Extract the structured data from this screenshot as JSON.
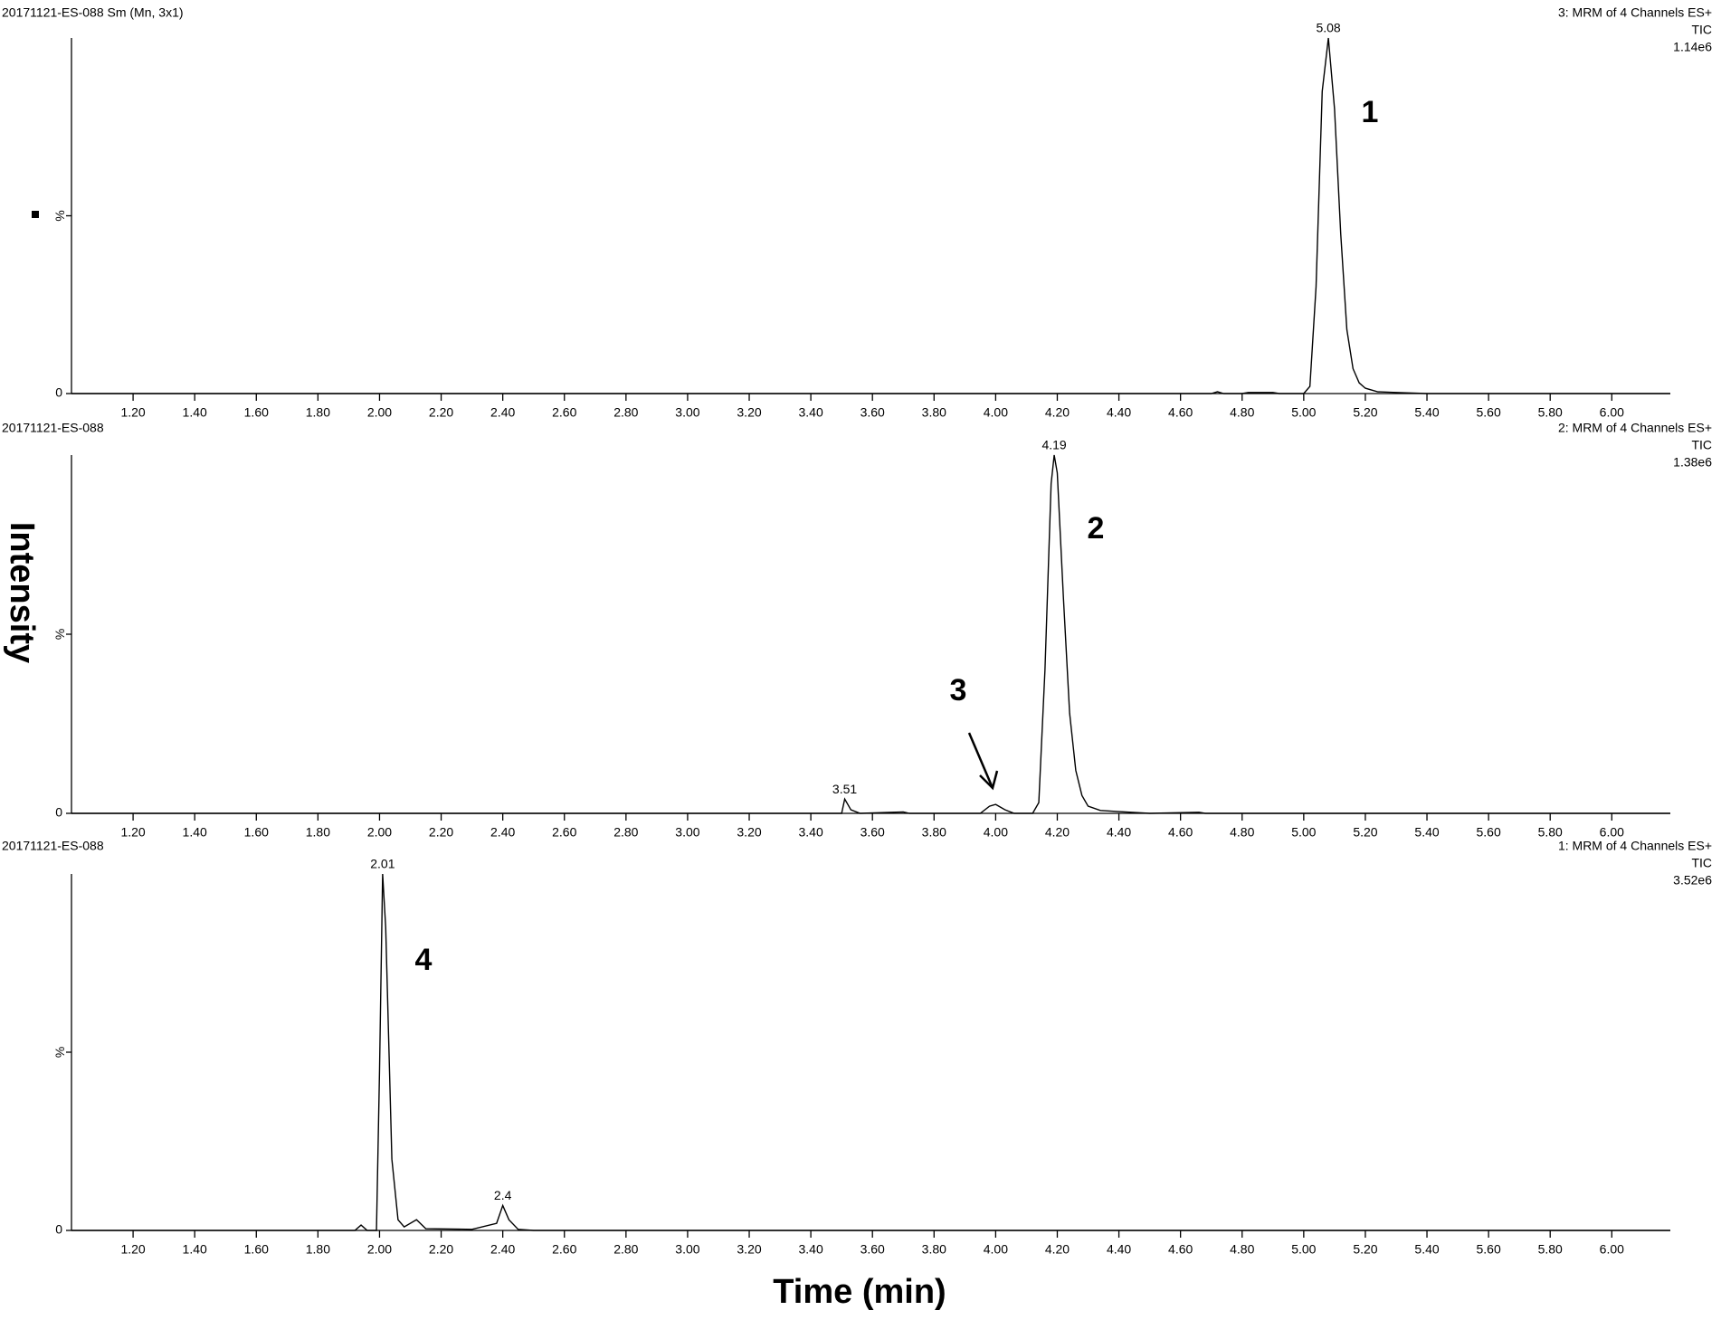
{
  "xlabel": "Time (min)",
  "ylabel": "Intensity",
  "chart_data": [
    {
      "type": "line",
      "title": "20171121-ES-088 Sm (Mn, 3x1)",
      "channel": "3: MRM of 4 Channels ES+",
      "trace": "TIC",
      "scale": "1.14e6",
      "text_color": "#000000",
      "color": "#000000",
      "annotation": "1",
      "x": [
        1.0,
        4.7,
        4.72,
        4.74,
        4.8,
        4.82,
        4.9,
        4.92,
        5.0,
        5.02,
        5.04,
        5.06,
        5.08,
        5.1,
        5.12,
        5.14,
        5.16,
        5.18,
        5.2,
        5.24,
        5.3,
        5.4,
        6.19
      ],
      "values": [
        0,
        0,
        0.5,
        0,
        0,
        0.3,
        0.3,
        0,
        0,
        2,
        30,
        85,
        100,
        80,
        45,
        18,
        7,
        3,
        1.5,
        0.5,
        0.3,
        0,
        0
      ],
      "peaks": [
        5.08
      ],
      "xlim": [
        1.0,
        6.19
      ],
      "ylim": [
        0,
        100
      ],
      "xticks": [
        {
          "value": 1.2,
          "label": "1.20"
        },
        {
          "value": 1.4,
          "label": "1.40"
        },
        {
          "value": 1.6,
          "label": "1.60"
        },
        {
          "value": 1.8,
          "label": "1.80"
        },
        {
          "value": 2.0,
          "label": "2.00"
        },
        {
          "value": 2.2,
          "label": "2.20"
        },
        {
          "value": 2.4,
          "label": "2.40"
        },
        {
          "value": 2.6,
          "label": "2.60"
        },
        {
          "value": 2.8,
          "label": "2.80"
        },
        {
          "value": 3.0,
          "label": "3.00"
        },
        {
          "value": 3.2,
          "label": "3.20"
        },
        {
          "value": 3.4,
          "label": "3.40"
        },
        {
          "value": 3.6,
          "label": "3.60"
        },
        {
          "value": 3.8,
          "label": "3.80"
        },
        {
          "value": 4.0,
          "label": "4.00"
        },
        {
          "value": 4.2,
          "label": "4.20"
        },
        {
          "value": 4.4,
          "label": "4.40"
        },
        {
          "value": 4.6,
          "label": "4.60"
        },
        {
          "value": 4.8,
          "label": "4.80"
        },
        {
          "value": 5.0,
          "label": "5.00"
        },
        {
          "value": 5.2,
          "label": "5.20"
        },
        {
          "value": 5.4,
          "label": "5.40"
        },
        {
          "value": 5.6,
          "label": "5.60"
        },
        {
          "value": 5.8,
          "label": "5.80"
        },
        {
          "value": 6.0,
          "label": "6.00"
        }
      ],
      "yticks": [
        0,
        {
          "value": 50,
          "label": "%"
        }
      ]
    },
    {
      "type": "line",
      "title": "20171121-ES-088",
      "channel": "2: MRM of 4 Channels ES+",
      "trace": "TIC",
      "scale": "1.38e6",
      "text_color": "#1a8c1a",
      "color": "#000000",
      "annotation": "2",
      "annotation2": "3",
      "x": [
        1.0,
        3.5,
        3.51,
        3.53,
        3.56,
        3.7,
        3.72,
        3.95,
        3.98,
        4.0,
        4.03,
        4.06,
        4.12,
        4.14,
        4.16,
        4.18,
        4.19,
        4.2,
        4.22,
        4.24,
        4.26,
        4.28,
        4.3,
        4.34,
        4.4,
        4.5,
        4.66,
        4.68,
        6.19
      ],
      "values": [
        0,
        0,
        4,
        1,
        0,
        0.4,
        0,
        0,
        2,
        2.5,
        1,
        0,
        0,
        3,
        40,
        92,
        100,
        95,
        60,
        28,
        12,
        5,
        2,
        0.8,
        0.5,
        0,
        0.3,
        0,
        0
      ],
      "peaks": [
        3.51,
        4.19
      ],
      "xlim": [
        1.0,
        6.19
      ],
      "ylim": [
        0,
        100
      ],
      "xticks": [
        {
          "value": 1.2,
          "label": "1.20"
        },
        {
          "value": 1.4,
          "label": "1.40"
        },
        {
          "value": 1.6,
          "label": "1.60"
        },
        {
          "value": 1.8,
          "label": "1.80"
        },
        {
          "value": 2.0,
          "label": "2.00"
        },
        {
          "value": 2.2,
          "label": "2.20"
        },
        {
          "value": 2.4,
          "label": "2.40"
        },
        {
          "value": 2.6,
          "label": "2.60"
        },
        {
          "value": 2.8,
          "label": "2.80"
        },
        {
          "value": 3.0,
          "label": "3.00"
        },
        {
          "value": 3.2,
          "label": "3.20"
        },
        {
          "value": 3.4,
          "label": "3.40"
        },
        {
          "value": 3.6,
          "label": "3.60"
        },
        {
          "value": 3.8,
          "label": "3.80"
        },
        {
          "value": 4.0,
          "label": "4.00"
        },
        {
          "value": 4.2,
          "label": "4.20"
        },
        {
          "value": 4.4,
          "label": "4.40"
        },
        {
          "value": 4.6,
          "label": "4.60"
        },
        {
          "value": 4.8,
          "label": "4.80"
        },
        {
          "value": 5.0,
          "label": "5.00"
        },
        {
          "value": 5.2,
          "label": "5.20"
        },
        {
          "value": 5.4,
          "label": "5.40"
        },
        {
          "value": 5.6,
          "label": "5.60"
        },
        {
          "value": 5.8,
          "label": "5.80"
        },
        {
          "value": 6.0,
          "label": "6.00"
        }
      ],
      "yticks": [
        0,
        {
          "value": 50,
          "label": "%"
        }
      ]
    },
    {
      "type": "line",
      "title": "20171121-ES-088",
      "channel": "1: MRM of 4 Channels ES+",
      "trace": "TIC",
      "scale": "3.52e6",
      "text_color": "#e02020",
      "color": "#000000",
      "annotation": "4",
      "x": [
        1.0,
        1.92,
        1.94,
        1.96,
        1.99,
        2.0,
        2.01,
        2.02,
        2.04,
        2.06,
        2.08,
        2.12,
        2.15,
        2.3,
        2.38,
        2.4,
        2.42,
        2.45,
        2.5,
        6.19
      ],
      "values": [
        0,
        0,
        1.5,
        0,
        0,
        45,
        100,
        85,
        20,
        3,
        1,
        3,
        0.5,
        0.3,
        2,
        7,
        3,
        0.3,
        0,
        0
      ],
      "peaks": [
        2.01,
        2.4
      ],
      "xlim": [
        1.0,
        6.19
      ],
      "ylim": [
        0,
        100
      ],
      "xticks": [
        {
          "value": 1.2,
          "label": "1.20"
        },
        {
          "value": 1.4,
          "label": "1.40"
        },
        {
          "value": 1.6,
          "label": "1.60"
        },
        {
          "value": 1.8,
          "label": "1.80"
        },
        {
          "value": 2.0,
          "label": "2.00"
        },
        {
          "value": 2.2,
          "label": "2.20"
        },
        {
          "value": 2.4,
          "label": "2.40"
        },
        {
          "value": 2.6,
          "label": "2.60"
        },
        {
          "value": 2.8,
          "label": "2.80"
        },
        {
          "value": 3.0,
          "label": "3.00"
        },
        {
          "value": 3.2,
          "label": "3.20"
        },
        {
          "value": 3.4,
          "label": "3.40"
        },
        {
          "value": 3.6,
          "label": "3.60"
        },
        {
          "value": 3.8,
          "label": "3.80"
        },
        {
          "value": 4.0,
          "label": "4.00"
        },
        {
          "value": 4.2,
          "label": "4.20"
        },
        {
          "value": 4.4,
          "label": "4.40"
        },
        {
          "value": 4.6,
          "label": "4.60"
        },
        {
          "value": 4.8,
          "label": "4.80"
        },
        {
          "value": 5.0,
          "label": "5.00"
        },
        {
          "value": 5.2,
          "label": "5.20"
        },
        {
          "value": 5.4,
          "label": "5.40"
        },
        {
          "value": 5.6,
          "label": "5.60"
        },
        {
          "value": 5.8,
          "label": "5.80"
        },
        {
          "value": 6.0,
          "label": "6.00"
        }
      ],
      "yticks": [
        0,
        {
          "value": 50,
          "label": "%"
        }
      ]
    }
  ]
}
